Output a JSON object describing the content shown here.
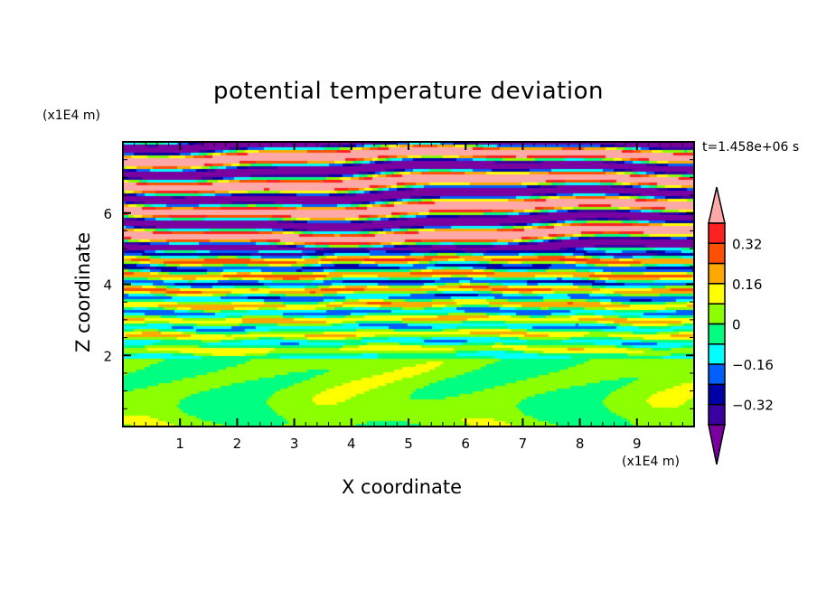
{
  "chart_data": {
    "type": "heatmap",
    "title": "potential temperature deviation",
    "xlabel": "X coordinate",
    "ylabel": "Z coordinate",
    "x_unit": "(x1E4 m)",
    "y_unit": "(x1E4 m)",
    "xlim": [
      0,
      10
    ],
    "ylim": [
      0,
      8
    ],
    "x_ticks": [
      "1",
      "2",
      "3",
      "4",
      "5",
      "6",
      "7",
      "8",
      "9"
    ],
    "y_ticks": [
      "2",
      "4",
      "6"
    ],
    "time_label": "t=1.458e+06 s",
    "colorbar": {
      "levels": [
        -0.4,
        -0.32,
        -0.24,
        -0.16,
        -0.08,
        0,
        0.08,
        0.16,
        0.24,
        0.32,
        0.4
      ],
      "colors": [
        "#7a00a0",
        "#3a00a0",
        "#0000a8",
        "#0060ff",
        "#00ffff",
        "#00ff80",
        "#8cff00",
        "#ffff00",
        "#ffa800",
        "#ff5000",
        "#ff2020",
        "#ffa8a8"
      ],
      "tick_labels": [
        "0.32",
        "0.16",
        "0",
        "−0.16",
        "−0.32"
      ],
      "tick_values": [
        0.32,
        0.16,
        0,
        -0.16,
        -0.32
      ],
      "extend": "both"
    }
  }
}
